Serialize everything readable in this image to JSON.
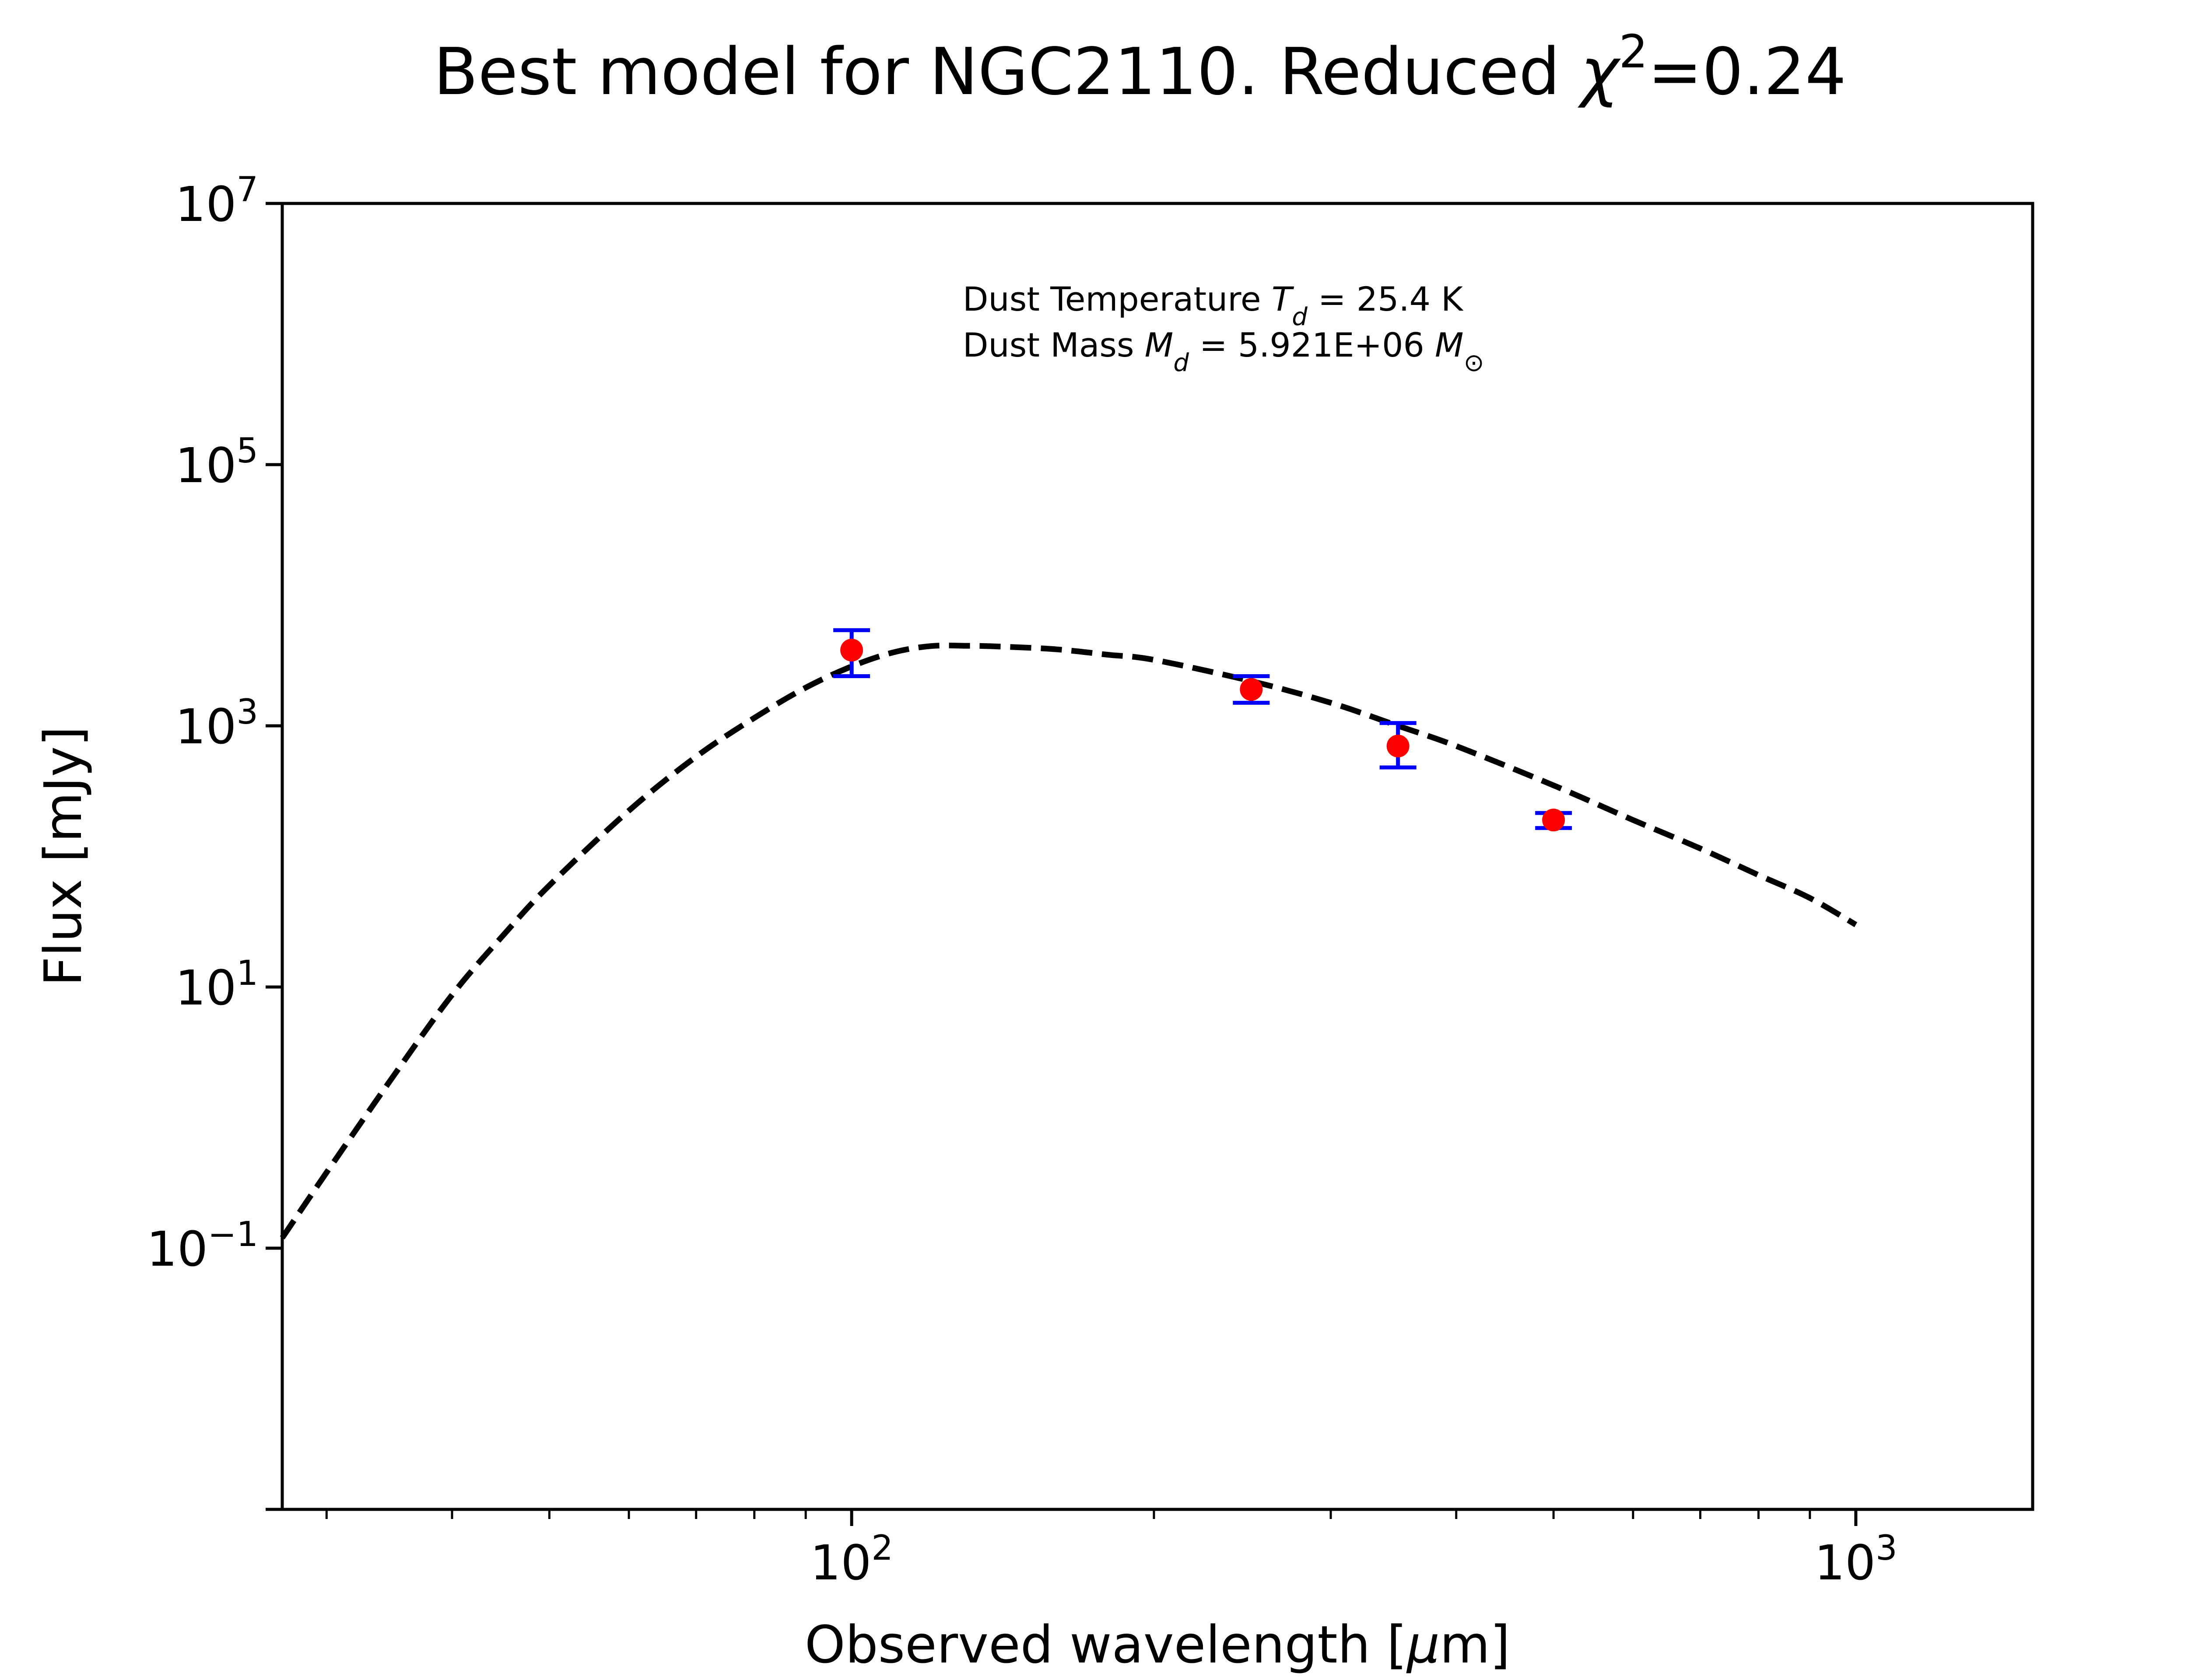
{
  "chart_data": {
    "type": "scatter",
    "title": {
      "prefix": "Best model for NGC2110. Reduced ",
      "symbol": "χ",
      "sup": "2",
      "suffix": "=0.24"
    },
    "xlabel": {
      "prefix": "Observed wavelength [",
      "symbol": "μ",
      "suffix": "m]"
    },
    "ylabel": "Flux [mJy]",
    "xscale": "log",
    "yscale": "log",
    "xlim": [
      27.1,
      1500
    ],
    "ylim": [
      0.001,
      10000000
    ],
    "x_major_ticks": [
      {
        "value": 100,
        "base": "10",
        "exp": "2"
      },
      {
        "value": 1000,
        "base": "10",
        "exp": "3"
      }
    ],
    "x_minor_ticks": [
      30,
      40,
      50,
      60,
      70,
      80,
      90,
      200,
      300,
      400,
      500,
      600,
      700,
      800,
      900
    ],
    "y_major_ticks": [
      {
        "value": 0.1,
        "base": "10",
        "exp": "−1"
      },
      {
        "value": 10,
        "base": "10",
        "exp": "1"
      },
      {
        "value": 1000,
        "base": "10",
        "exp": "3"
      },
      {
        "value": 100000,
        "base": "10",
        "exp": "5"
      },
      {
        "value": 10000000,
        "base": "10",
        "exp": "7"
      }
    ],
    "y_minor_ticks": [
      0.001
    ],
    "series": [
      {
        "kind": "model",
        "style": "dashed",
        "color": "#000000",
        "x": [
          27.1,
          30,
          35,
          40,
          45,
          50,
          60,
          70,
          80,
          90,
          100,
          110,
          120,
          130,
          140,
          160,
          180,
          200,
          250,
          300,
          350,
          400,
          500,
          600,
          700,
          800,
          900,
          1000
        ],
        "y": [
          0.12,
          0.38,
          2.1,
          8.7,
          25,
          60,
          224,
          580,
          1150,
          1960,
          2850,
          3650,
          4080,
          4100,
          4050,
          3850,
          3500,
          3200,
          2200,
          1500,
          1000,
          700,
          350,
          190,
          115,
          72,
          48,
          30
        ]
      },
      {
        "kind": "observations",
        "marker": "circle",
        "color": "#ff0000",
        "error_color": "#0000ff",
        "x": [
          100,
          250,
          350,
          500
        ],
        "y": [
          3800,
          1900,
          700,
          190
        ],
        "y_low": [
          2400,
          1500,
          480,
          165
        ],
        "y_high": [
          5400,
          2400,
          1050,
          215
        ]
      }
    ],
    "annotations": {
      "line1": {
        "prefix": "Dust Temperature ",
        "symbol": "T",
        "sub": "d",
        "suffix": " = 25.4 K"
      },
      "line2": {
        "prefix": "Dust Mass ",
        "symbol": "M",
        "sub": "d",
        "middle": " = 5.921E+06 ",
        "symbol2": "M",
        "sub2": "⊙"
      }
    },
    "grid": false,
    "legend": "none"
  }
}
